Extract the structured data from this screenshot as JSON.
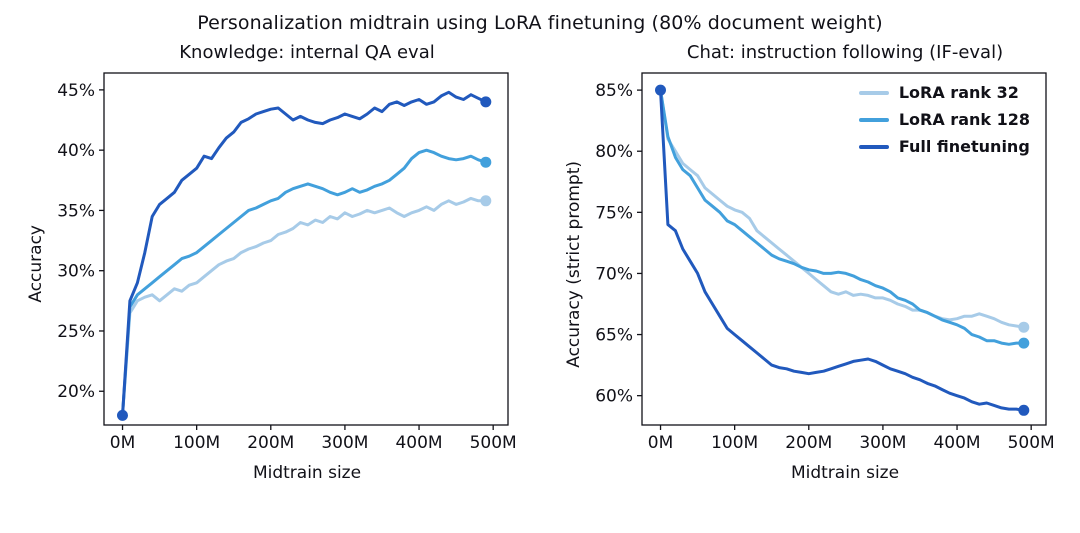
{
  "title": "Personalization midtrain using LoRA finetuning (80% document weight)",
  "colors": {
    "lora32": "#a7cbe8",
    "lora128": "#42a0dc",
    "full": "#2159bd",
    "text": "#111118",
    "axis": "#111118"
  },
  "legend": {
    "entries": [
      {
        "label": "LoRA rank 32",
        "color": "lora32"
      },
      {
        "label": "LoRA rank 128",
        "color": "lora128"
      },
      {
        "label": "Full finetuning",
        "color": "full"
      }
    ],
    "position": "top-right"
  },
  "chart_data": [
    {
      "type": "line",
      "title": "Knowledge: internal QA eval",
      "xlabel": "Midtrain size",
      "ylabel": "Accuracy",
      "xlim": [
        -25,
        520
      ],
      "ylim": [
        17.2,
        46.4
      ],
      "xticks": [
        0,
        100,
        200,
        300,
        400,
        500
      ],
      "xtick_labels": [
        "0M",
        "100M",
        "200M",
        "300M",
        "400M",
        "500M"
      ],
      "yticks": [
        20,
        25,
        30,
        35,
        40,
        45
      ],
      "ytick_labels": [
        "20%",
        "25%",
        "30%",
        "35%",
        "40%",
        "45%"
      ],
      "grid": false,
      "x": [
        0,
        10,
        20,
        30,
        40,
        50,
        60,
        70,
        80,
        90,
        100,
        110,
        120,
        130,
        140,
        150,
        160,
        170,
        180,
        190,
        200,
        210,
        220,
        230,
        240,
        250,
        260,
        270,
        280,
        290,
        300,
        310,
        320,
        330,
        340,
        350,
        360,
        370,
        380,
        390,
        400,
        410,
        420,
        430,
        440,
        450,
        460,
        470,
        480,
        490
      ],
      "series": [
        {
          "name": "LoRA rank 32",
          "color": "lora32",
          "y": [
            18,
            26.5,
            27.5,
            27.8,
            28,
            27.5,
            28,
            28.5,
            28.3,
            28.8,
            29,
            29.5,
            30,
            30.5,
            30.8,
            31,
            31.5,
            31.8,
            32,
            32.3,
            32.5,
            33,
            33.2,
            33.5,
            34,
            33.8,
            34.2,
            34,
            34.5,
            34.3,
            34.8,
            34.5,
            34.7,
            35,
            34.8,
            35,
            35.2,
            34.8,
            34.5,
            34.8,
            35,
            35.3,
            35,
            35.5,
            35.8,
            35.5,
            35.7,
            36,
            35.8,
            35.8
          ]
        },
        {
          "name": "LoRA rank 128",
          "color": "lora128",
          "y": [
            18,
            27,
            28,
            28.5,
            29,
            29.5,
            30,
            30.5,
            31,
            31.2,
            31.5,
            32,
            32.5,
            33,
            33.5,
            34,
            34.5,
            35,
            35.2,
            35.5,
            35.8,
            36,
            36.5,
            36.8,
            37,
            37.2,
            37,
            36.8,
            36.5,
            36.3,
            36.5,
            36.8,
            36.5,
            36.7,
            37,
            37.2,
            37.5,
            38,
            38.5,
            39.3,
            39.8,
            40,
            39.8,
            39.5,
            39.3,
            39.2,
            39.3,
            39.5,
            39.2,
            39
          ]
        },
        {
          "name": "Full finetuning",
          "color": "full",
          "y": [
            18,
            27.5,
            29,
            31.5,
            34.5,
            35.5,
            36,
            36.5,
            37.5,
            38,
            38.5,
            39.5,
            39.3,
            40.2,
            41,
            41.5,
            42.3,
            42.6,
            43,
            43.2,
            43.4,
            43.5,
            43,
            42.5,
            42.8,
            42.5,
            42.3,
            42.2,
            42.5,
            42.7,
            43,
            42.8,
            42.6,
            43,
            43.5,
            43.2,
            43.8,
            44,
            43.7,
            44,
            44.2,
            43.8,
            44,
            44.5,
            44.8,
            44.4,
            44.2,
            44.6,
            44.3,
            44
          ]
        }
      ],
      "dots": [
        {
          "x": 0,
          "y": 18,
          "color": "full"
        },
        {
          "x": 490,
          "y": 44,
          "color": "full"
        },
        {
          "x": 490,
          "y": 39,
          "color": "lora128"
        },
        {
          "x": 490,
          "y": 35.8,
          "color": "lora32"
        }
      ]
    },
    {
      "type": "line",
      "title": "Chat: instruction following (IF-eval)",
      "xlabel": "Midtrain size",
      "ylabel": "Accuracy (strict prompt)",
      "xlim": [
        -25,
        520
      ],
      "ylim": [
        57.6,
        86.4
      ],
      "xticks": [
        0,
        100,
        200,
        300,
        400,
        500
      ],
      "xtick_labels": [
        "0M",
        "100M",
        "200M",
        "300M",
        "400M",
        "500M"
      ],
      "yticks": [
        60,
        65,
        70,
        75,
        80,
        85
      ],
      "ytick_labels": [
        "60%",
        "65%",
        "70%",
        "75%",
        "80%",
        "85%"
      ],
      "grid": false,
      "x": [
        0,
        10,
        20,
        30,
        40,
        50,
        60,
        70,
        80,
        90,
        100,
        110,
        120,
        130,
        140,
        150,
        160,
        170,
        180,
        190,
        200,
        210,
        220,
        230,
        240,
        250,
        260,
        270,
        280,
        290,
        300,
        310,
        320,
        330,
        340,
        350,
        360,
        370,
        380,
        390,
        400,
        410,
        420,
        430,
        440,
        450,
        460,
        470,
        480,
        490
      ],
      "series": [
        {
          "name": "LoRA rank 32",
          "color": "lora32",
          "y": [
            85,
            81,
            80,
            79,
            78.5,
            78,
            77,
            76.5,
            76,
            75.5,
            75.2,
            75,
            74.5,
            73.5,
            73,
            72.5,
            72,
            71.5,
            71,
            70.5,
            70,
            69.5,
            69,
            68.5,
            68.3,
            68.5,
            68.2,
            68.3,
            68.2,
            68,
            68,
            67.8,
            67.5,
            67.3,
            67,
            67,
            66.8,
            66.5,
            66.3,
            66.2,
            66.3,
            66.5,
            66.5,
            66.7,
            66.5,
            66.3,
            66,
            65.8,
            65.7,
            65.6
          ]
        },
        {
          "name": "LoRA rank 128",
          "color": "lora128",
          "y": [
            85,
            81.2,
            79.5,
            78.5,
            78,
            77,
            76,
            75.5,
            75,
            74.3,
            74,
            73.5,
            73,
            72.5,
            72,
            71.5,
            71.2,
            71,
            70.8,
            70.5,
            70.3,
            70.2,
            70,
            70,
            70.1,
            70,
            69.8,
            69.5,
            69.3,
            69,
            68.8,
            68.5,
            68,
            67.8,
            67.5,
            67,
            66.8,
            66.5,
            66.2,
            66,
            65.8,
            65.5,
            65,
            64.8,
            64.5,
            64.5,
            64.3,
            64.2,
            64.3,
            64.3
          ]
        },
        {
          "name": "Full finetuning",
          "color": "full",
          "y": [
            85,
            74,
            73.5,
            72,
            71,
            70,
            68.5,
            67.5,
            66.5,
            65.5,
            65,
            64.5,
            64,
            63.5,
            63,
            62.5,
            62.3,
            62.2,
            62,
            61.9,
            61.8,
            61.9,
            62,
            62.2,
            62.4,
            62.6,
            62.8,
            62.9,
            63,
            62.8,
            62.5,
            62.2,
            62,
            61.8,
            61.5,
            61.3,
            61,
            60.8,
            60.5,
            60.2,
            60,
            59.8,
            59.5,
            59.3,
            59.4,
            59.2,
            59,
            58.9,
            58.9,
            58.8
          ]
        }
      ],
      "dots": [
        {
          "x": 0,
          "y": 85,
          "color": "full"
        },
        {
          "x": 490,
          "y": 65.6,
          "color": "lora32"
        },
        {
          "x": 490,
          "y": 64.3,
          "color": "lora128"
        },
        {
          "x": 490,
          "y": 58.8,
          "color": "full"
        }
      ]
    }
  ]
}
